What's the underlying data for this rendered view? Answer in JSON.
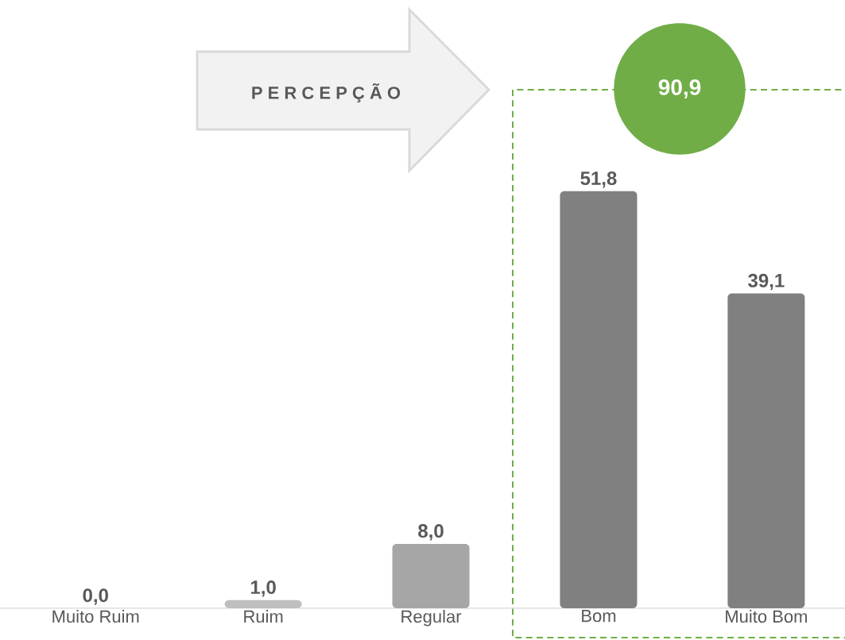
{
  "chart_data": {
    "type": "bar",
    "categories": [
      "Muito Ruim",
      "Ruim",
      "Regular",
      "Bom",
      "Muito Bom"
    ],
    "values": [
      0.0,
      1.0,
      8.0,
      51.8,
      39.1
    ],
    "colors": [
      "#bfbfbf",
      "#bfbfbf",
      "#a6a6a6",
      "#808080",
      "#808080"
    ],
    "value_labels": [
      "0,0",
      "1,0",
      "8,0",
      "51,8",
      "39,1"
    ],
    "annotations": [
      "P E R C E P Ç Ã O",
      "90,9"
    ]
  }
}
